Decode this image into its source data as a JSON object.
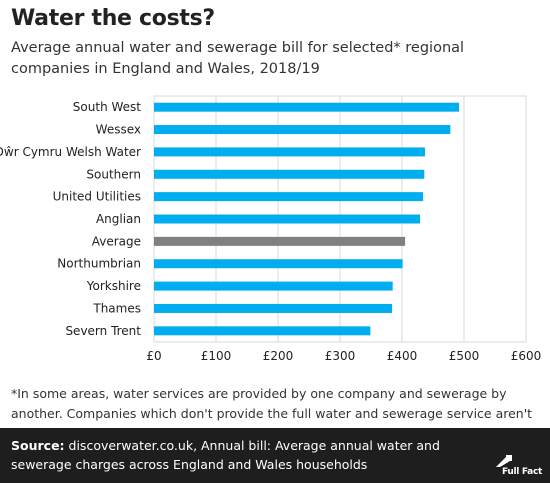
{
  "header": {
    "title": "Water the costs?",
    "subtitle": "Average annual water and sewerage bill for selected* regional companies in England and Wales, 2018/19"
  },
  "footnote": "*In some areas, water services are provided by one company and sewerage by another. Companies which don't provide the full water and sewerage service aren't included here.",
  "source": {
    "label": "Source:",
    "text": " discoverwater.co.uk, Annual bill: Average annual water and sewerage charges across England and Wales households"
  },
  "logo": {
    "text": "Full Fact",
    "icon": "full-fact-logo-icon"
  },
  "colors": {
    "bar": "#00adef",
    "average_bar": "#808080",
    "grid": "#d9d9d9",
    "footer_bg": "#1e1e1e"
  },
  "chart_data": {
    "type": "bar",
    "orientation": "horizontal",
    "categories": [
      "South West",
      "Wessex",
      "Dŵr Cymru Welsh Water",
      "Southern",
      "United Utilities",
      "Anglian",
      "Average",
      "Northumbrian",
      "Yorkshire",
      "Thames",
      "Severn Trent"
    ],
    "values": [
      492,
      478,
      437,
      436,
      434,
      429,
      405,
      401,
      385,
      384,
      349
    ],
    "highlight_category": "Average",
    "xlim": [
      0,
      600
    ],
    "xticks": [
      0,
      100,
      200,
      300,
      400,
      500,
      600
    ],
    "xtick_labels": [
      "£0",
      "£100",
      "£200",
      "£300",
      "£400",
      "£500",
      "£600"
    ],
    "xlabel": "",
    "ylabel": "",
    "grid": true
  }
}
